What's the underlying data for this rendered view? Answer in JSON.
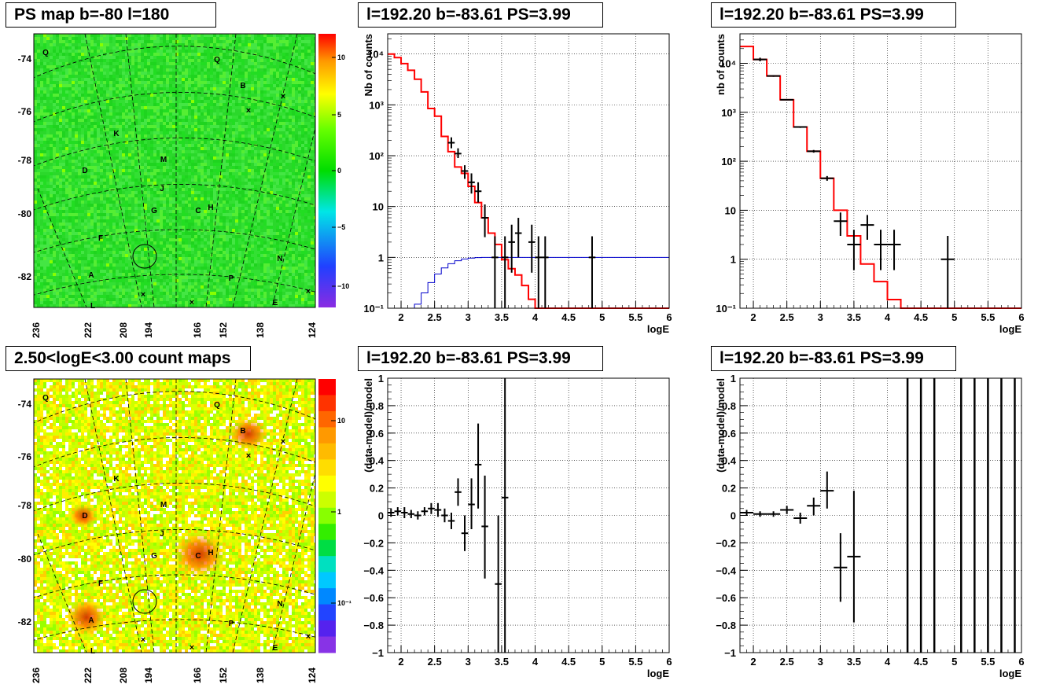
{
  "panels": {
    "map_top_title": "PS map b=-80 l=180",
    "map_bottom_title": "2.50<logE<3.00 count maps",
    "spec1_title": "l=192.20 b=-83.61 PS=3.99",
    "spec2_title": "l=192.20 b=-83.61 PS=3.99",
    "res1_title": "l=192.20 b=-83.61 PS=3.99",
    "res2_title": "l=192.20 b=-83.61 PS=3.99"
  },
  "maps": {
    "lat_ticks": [
      "-74",
      "-76",
      "-78",
      "-80",
      "-82"
    ],
    "lon_ticks": [
      "236",
      "222",
      "208",
      "194",
      "166",
      "152",
      "138",
      "124"
    ],
    "source_labels": [
      "Q",
      "Q",
      "B",
      "K",
      "D",
      "M",
      "J",
      "G",
      "C",
      "H",
      "F",
      "N",
      "A",
      "P",
      "L",
      "E"
    ],
    "colorbar_top_ticks": [
      "10",
      "5",
      "0",
      "−5",
      "−10"
    ],
    "colorbar_bottom_ticks": [
      "10",
      "1",
      "10⁻¹"
    ]
  },
  "chart_data": [
    {
      "type": "line",
      "id": "spec1",
      "ylabel": "Nb of counts",
      "xlabel": "logE",
      "xlim": [
        1.8,
        6
      ],
      "ylim": [
        0.1,
        25000
      ],
      "yscale": "log",
      "grid": true,
      "x_ticks": [
        "2",
        "2.5",
        "3",
        "3.5",
        "4",
        "4.5",
        "5",
        "5.5",
        "6"
      ],
      "y_ticks": [
        "10⁻¹",
        "1",
        "10",
        "10²",
        "10³",
        "10⁴"
      ],
      "series": [
        {
          "name": "",
          "style": "step",
          "color": "#ff0000",
          "edges": [
            1.8,
            1.9,
            2.0,
            2.1,
            2.2,
            2.3,
            2.4,
            2.5,
            2.6,
            2.7,
            2.8,
            2.9,
            3.0,
            3.1,
            3.2,
            3.3,
            3.4,
            3.5,
            3.6,
            3.7,
            3.8,
            3.9,
            4.0,
            4.1,
            6.0
          ],
          "values": [
            10000,
            8500,
            6500,
            4800,
            3200,
            1800,
            850,
            600,
            240,
            120,
            60,
            45,
            25,
            12,
            6,
            3,
            1.8,
            0.9,
            0.6,
            0.45,
            0.28,
            0.15,
            0.1,
            0.1
          ]
        },
        {
          "name": "",
          "style": "step",
          "color": "#0000cc",
          "edges": [
            1.8,
            2.1,
            2.2,
            2.3,
            2.4,
            2.5,
            2.6,
            2.7,
            2.8,
            2.9,
            3.0,
            3.1,
            3.2,
            6.0
          ],
          "values": [
            0.1,
            0.1,
            0.12,
            0.2,
            0.32,
            0.47,
            0.62,
            0.75,
            0.86,
            0.93,
            0.97,
            0.99,
            1.0
          ]
        },
        {
          "name": "",
          "style": "errorbar",
          "color": "#000000",
          "x": [
            2.75,
            2.85,
            2.95,
            3.05,
            3.15,
            3.25,
            3.4,
            3.55,
            3.65,
            3.75,
            3.95,
            4.05,
            4.15,
            4.85
          ],
          "y": [
            180,
            110,
            50,
            30,
            20,
            6,
            1,
            1,
            2,
            3,
            2,
            1,
            1,
            1
          ],
          "ylo": [
            140,
            90,
            35,
            18,
            12,
            2.5,
            0.1,
            0.1,
            0.5,
            1,
            0.5,
            0.1,
            0.1,
            0.1
          ],
          "yhi": [
            230,
            140,
            65,
            45,
            30,
            11,
            2.6,
            2.6,
            4.4,
            6,
            4.4,
            2.6,
            2.6,
            2.6
          ],
          "xerr": 0.05
        }
      ]
    },
    {
      "type": "line",
      "id": "spec2",
      "ylabel": "nb of counts",
      "xlabel": "logE",
      "xlim": [
        1.8,
        6
      ],
      "ylim": [
        0.1,
        40000
      ],
      "yscale": "log",
      "grid": true,
      "x_ticks": [
        "2",
        "2.5",
        "3",
        "3.5",
        "4",
        "4.5",
        "5",
        "5.5",
        "6"
      ],
      "y_ticks": [
        "10⁻¹",
        "1",
        "10",
        "10²",
        "10³",
        "10⁴"
      ],
      "series": [
        {
          "name": "",
          "style": "step",
          "color": "#ff0000",
          "edges": [
            1.8,
            2.0,
            2.2,
            2.4,
            2.6,
            2.8,
            3.0,
            3.2,
            3.4,
            3.6,
            3.8,
            4.0,
            4.2,
            6.0
          ],
          "values": [
            22000,
            12000,
            5500,
            1800,
            500,
            160,
            45,
            10,
            3,
            0.8,
            0.35,
            0.15,
            0.1
          ]
        },
        {
          "name": "",
          "style": "errorbar",
          "color": "#000000",
          "x": [
            2.1,
            2.3,
            2.5,
            2.7,
            2.9,
            3.1,
            3.3,
            3.5,
            3.7,
            3.9,
            4.1,
            4.9
          ],
          "y": [
            12000,
            5500,
            1800,
            500,
            160,
            45,
            6,
            2,
            5,
            2,
            2,
            1
          ],
          "ylo": [
            11000,
            5300,
            1750,
            480,
            150,
            40,
            3,
            0.6,
            2.5,
            0.6,
            0.6,
            0.1
          ],
          "yhi": [
            13000,
            5700,
            1850,
            520,
            170,
            50,
            9,
            4,
            8,
            4,
            4,
            3
          ],
          "xerr": 0.1
        }
      ]
    },
    {
      "type": "scatter",
      "id": "res1",
      "ylabel": "(data-model)/model",
      "xlabel": "logE",
      "xlim": [
        1.8,
        6
      ],
      "ylim": [
        -1,
        1
      ],
      "grid": true,
      "x_ticks": [
        "2",
        "2.5",
        "3",
        "3.5",
        "4",
        "4.5",
        "5",
        "5.5",
        "6"
      ],
      "y_ticks": [
        "−1",
        "−0.8",
        "−0.6",
        "−0.4",
        "−0.2",
        "0",
        "0.2",
        "0.4",
        "0.6",
        "0.8",
        "1"
      ],
      "series": [
        {
          "name": "",
          "style": "errorbar",
          "color": "#000000",
          "x": [
            1.85,
            1.95,
            2.05,
            2.15,
            2.25,
            2.35,
            2.45,
            2.55,
            2.65,
            2.75,
            2.85,
            2.95,
            3.05,
            3.15,
            3.25,
            3.45,
            3.55
          ],
          "y": [
            0.02,
            0.03,
            0.02,
            0.01,
            0.0,
            0.03,
            0.05,
            0.04,
            0.0,
            -0.04,
            0.17,
            -0.13,
            0.08,
            0.37,
            -0.08,
            -0.5,
            0.13
          ],
          "ylo": [
            -0.01,
            0.0,
            -0.02,
            -0.02,
            -0.03,
            0.0,
            0.01,
            -0.01,
            -0.05,
            -0.1,
            0.07,
            -0.26,
            -0.1,
            0.05,
            -0.46,
            -1.0,
            -1.0
          ],
          "yhi": [
            0.05,
            0.06,
            0.06,
            0.04,
            0.03,
            0.06,
            0.09,
            0.09,
            0.05,
            0.02,
            0.27,
            0.0,
            0.27,
            0.67,
            0.29,
            0.0,
            1.0
          ],
          "xerr": 0.05
        }
      ]
    },
    {
      "type": "scatter",
      "id": "res2",
      "ylabel": "(data-model)/model",
      "xlabel": "logE",
      "xlim": [
        1.8,
        6
      ],
      "ylim": [
        -1,
        1
      ],
      "grid": true,
      "x_ticks": [
        "2",
        "2.5",
        "3",
        "3.5",
        "4",
        "4.5",
        "5",
        "5.5",
        "6"
      ],
      "y_ticks": [
        "−1",
        "−0.8",
        "−0.6",
        "−0.4",
        "−0.2",
        "0",
        "0.2",
        "0.4",
        "0.6",
        "0.8",
        "1"
      ],
      "series": [
        {
          "name": "",
          "style": "errorbar",
          "color": "#000000",
          "x": [
            1.9,
            2.1,
            2.3,
            2.5,
            2.7,
            2.9,
            3.1,
            3.3,
            3.5
          ],
          "y": [
            0.02,
            0.01,
            0.01,
            0.04,
            -0.02,
            0.07,
            0.18,
            -0.38,
            -0.3
          ],
          "ylo": [
            0.0,
            -0.01,
            -0.01,
            0.01,
            -0.06,
            0.0,
            0.05,
            -0.63,
            -0.78
          ],
          "yhi": [
            0.04,
            0.03,
            0.03,
            0.07,
            0.02,
            0.13,
            0.32,
            -0.13,
            0.18
          ],
          "xerr": 0.1
        },
        {
          "name": "",
          "style": "vline",
          "color": "#000000",
          "x": [
            4.3,
            4.5,
            4.7,
            5.1,
            5.3,
            5.5,
            5.7,
            5.9
          ]
        }
      ]
    }
  ]
}
